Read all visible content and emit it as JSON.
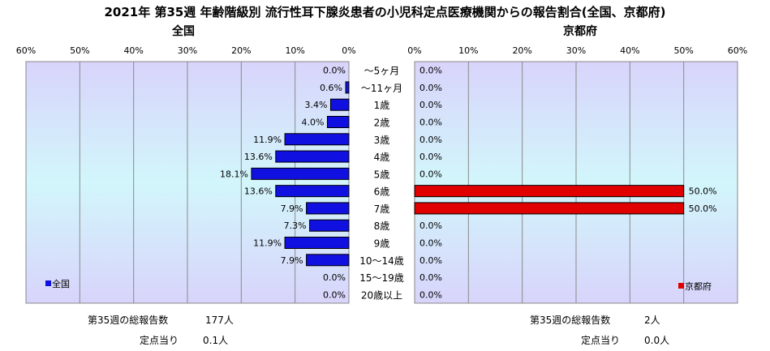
{
  "chart_data": {
    "type": "bar",
    "title": "2021年 第35週 年齢階級別 流行性耳下腺炎患者の小児科定点医療機関からの報告割合(全国、京都府)",
    "categories": [
      "～5ヶ月",
      "～11ヶ月",
      "1歳",
      "2歳",
      "3歳",
      "4歳",
      "5歳",
      "6歳",
      "7歳",
      "8歳",
      "9歳",
      "10～14歳",
      "15～19歳",
      "20歳以上"
    ],
    "xlim": [
      0,
      60
    ],
    "x_ticks": [
      "60%",
      "50%",
      "40%",
      "30%",
      "20%",
      "10%",
      "0%"
    ],
    "x_ticks_right": [
      "0%",
      "10%",
      "20%",
      "30%",
      "40%",
      "50%",
      "60%"
    ],
    "grid": true,
    "panels": [
      {
        "name": "全国",
        "legend": "全国",
        "legend_position": "bottom-left",
        "color": "#1010e0",
        "values": [
          0.0,
          0.6,
          3.4,
          4.0,
          11.9,
          13.6,
          18.1,
          13.6,
          7.9,
          7.3,
          11.9,
          7.9,
          0.0,
          0.0
        ],
        "labels": [
          "0.0%",
          "0.6%",
          "3.4%",
          "4.0%",
          "11.9%",
          "13.6%",
          "18.1%",
          "13.6%",
          "7.9%",
          "7.3%",
          "11.9%",
          "7.9%",
          "0.0%",
          "0.0%"
        ],
        "total_label": "第35週の総報告数",
        "total_value": "177人",
        "per_site_label": "定点当り",
        "per_site_value": "0.1人"
      },
      {
        "name": "京都府",
        "legend": "京都府",
        "legend_position": "bottom-right",
        "color": "#e00000",
        "values": [
          0.0,
          0.0,
          0.0,
          0.0,
          0.0,
          0.0,
          0.0,
          50.0,
          50.0,
          0.0,
          0.0,
          0.0,
          0.0,
          0.0
        ],
        "labels": [
          "0.0%",
          "0.0%",
          "0.0%",
          "0.0%",
          "0.0%",
          "0.0%",
          "0.0%",
          "50.0%",
          "50.0%",
          "0.0%",
          "0.0%",
          "0.0%",
          "0.0%",
          "0.0%"
        ],
        "total_label": "第35週の総報告数",
        "total_value": "2人",
        "per_site_label": "定点当り",
        "per_site_value": "0.0人"
      }
    ]
  }
}
